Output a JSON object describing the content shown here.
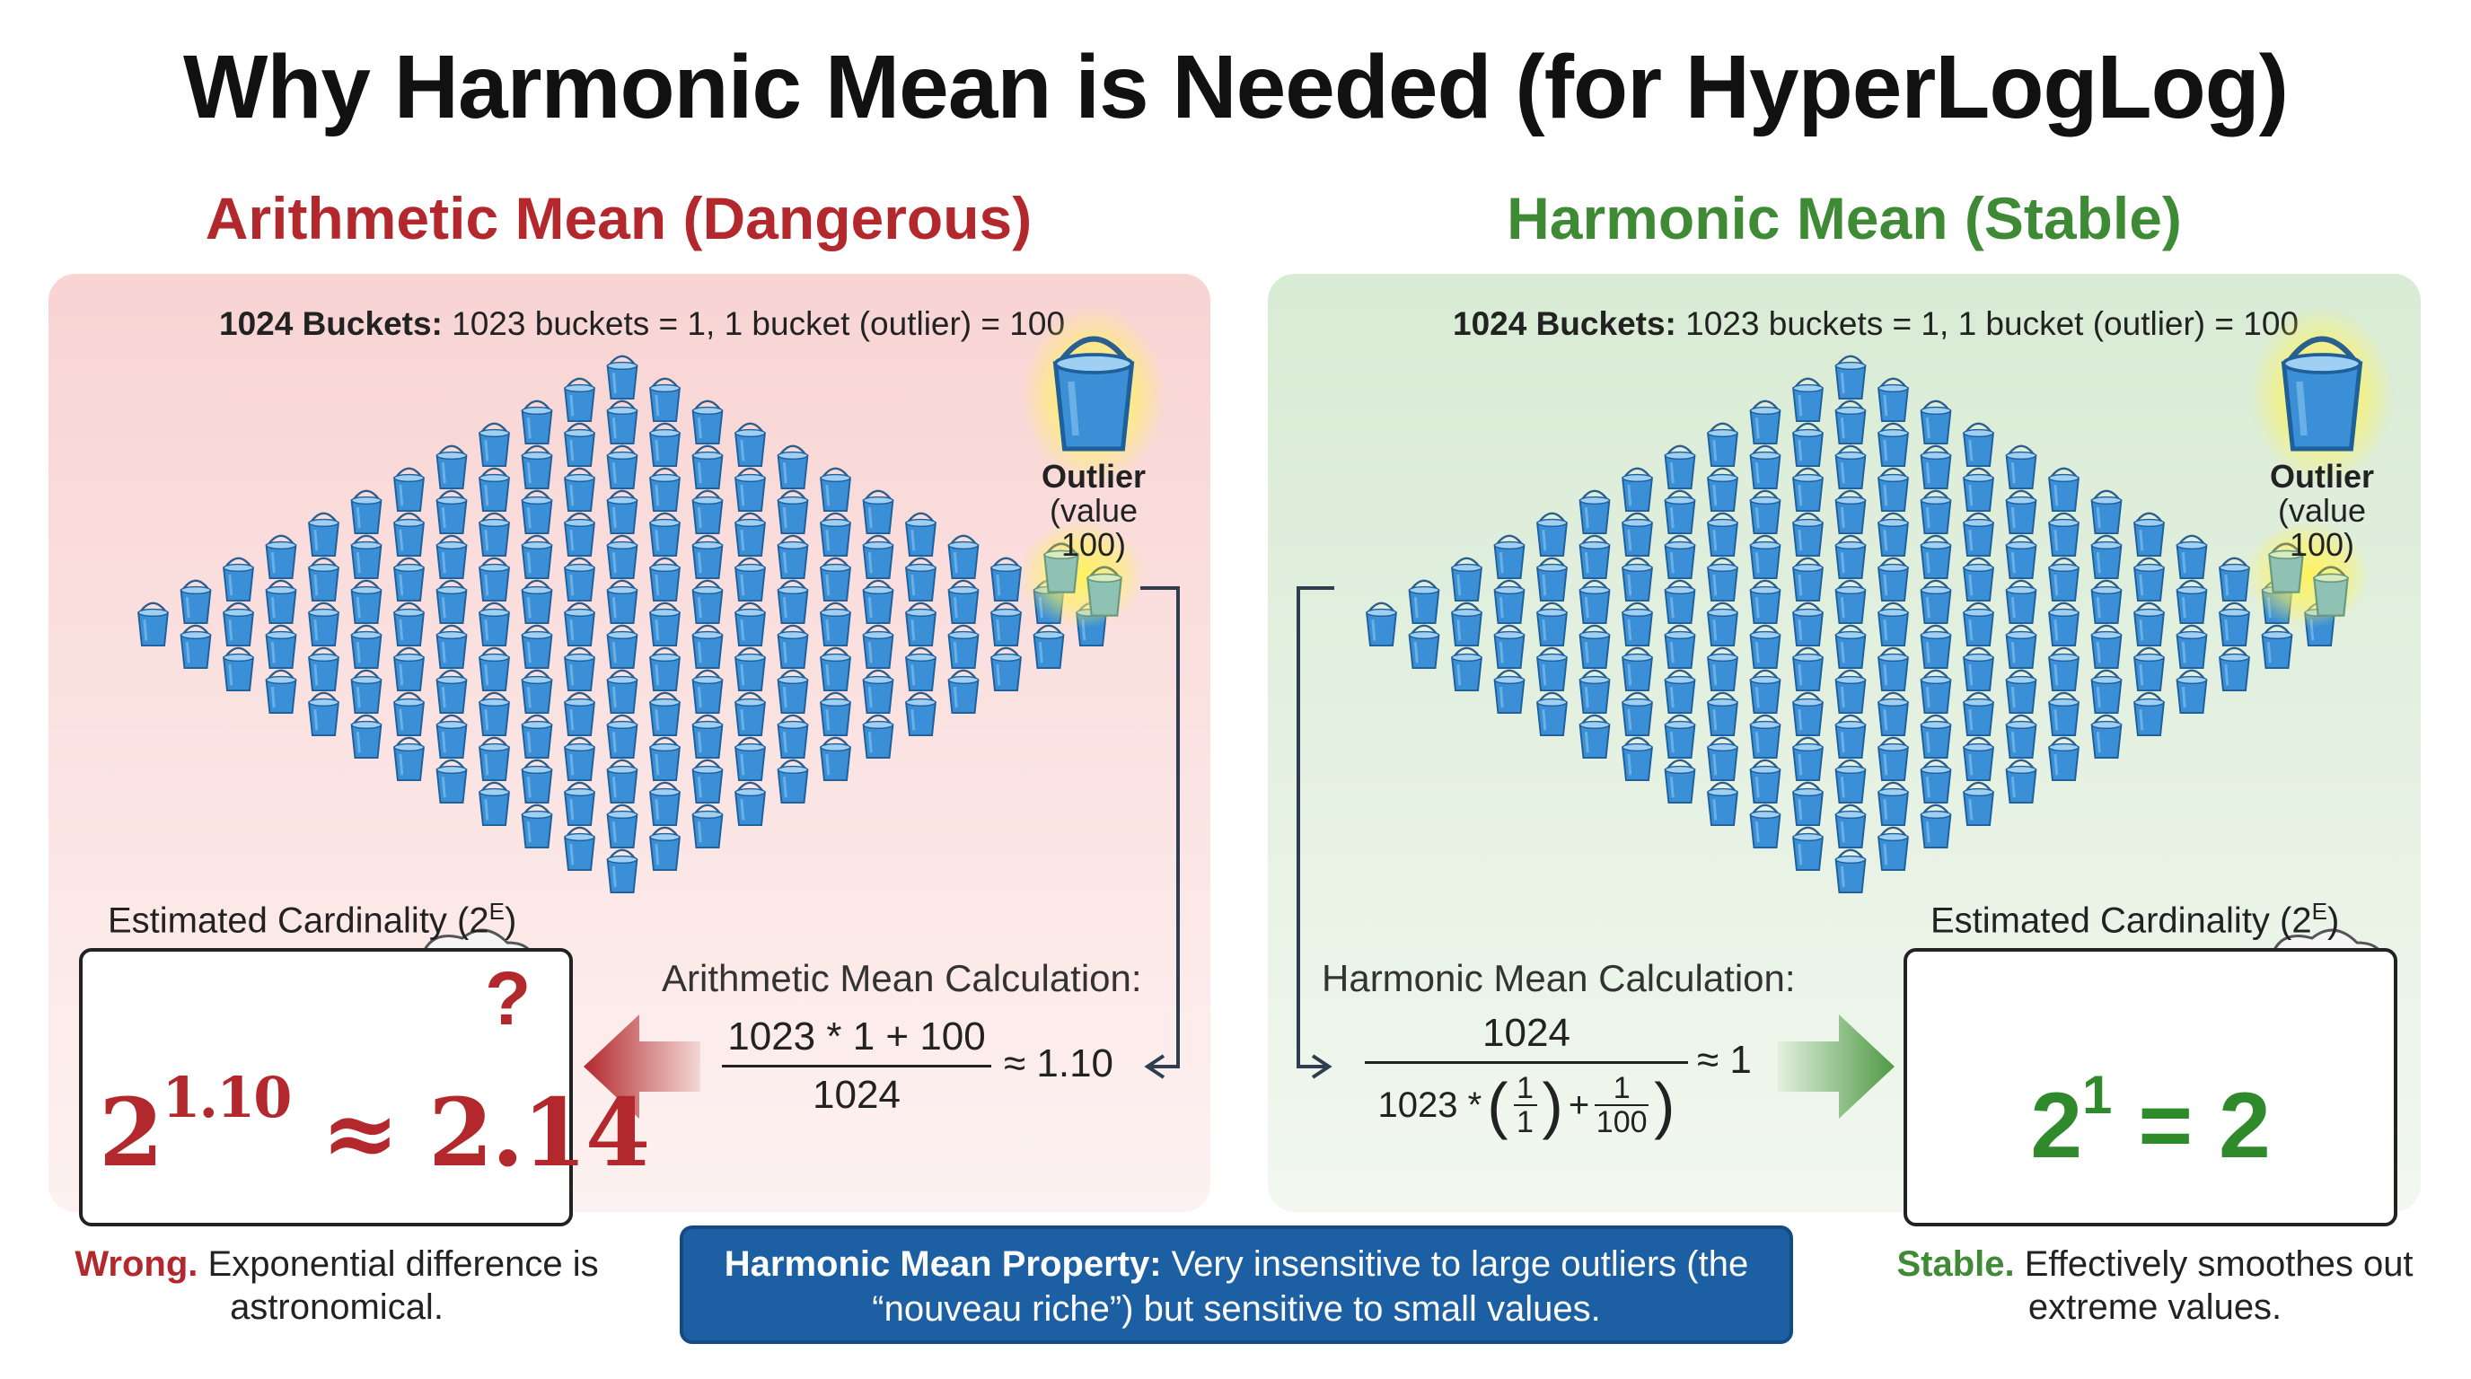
{
  "title": "Why Harmonic Mean is Needed (for HyperLogLog)",
  "left": {
    "heading": "Arithmetic Mean (Dangerous)",
    "buckets_caption_bold": "1024 Buckets:",
    "buckets_caption_rest": "1023 buckets = 1, 1 bucket (outlier) = 100",
    "outlier_label": "Outlier",
    "outlier_value": "(value 100)",
    "card_heading": "Estimated Cardinality (2",
    "card_heading_sup": "E",
    "card_heading_close": ")",
    "result_base": "2",
    "result_exp": "1.10",
    "result_rest": "≈ 2.14",
    "question_mark": "?",
    "calc_title": "Arithmetic Mean Calculation:",
    "numerator": "1023 * 1 + 100",
    "denominator": "1024",
    "approx": "≈ 1.10",
    "verdict_word": "Wrong.",
    "verdict_rest": "Exponential difference is astronomical."
  },
  "right": {
    "heading": "Harmonic Mean (Stable)",
    "buckets_caption_bold": "1024 Buckets:",
    "buckets_caption_rest": "1023 buckets = 1, 1 bucket (outlier) = 100",
    "outlier_label": "Outlier",
    "outlier_value": "(value 100)",
    "card_heading": "Estimated Cardinality (2",
    "card_heading_sup": "E",
    "card_heading_close": ")",
    "result_base": "2",
    "result_exp": "1",
    "result_rest": " = 2",
    "calc_title": "Harmonic Mean Calculation:",
    "numerator": "1024",
    "denominator_prefix": "1023 *",
    "denominator_frac1_num": "1",
    "denominator_frac1_den": "1",
    "denominator_plus": "+",
    "denominator_frac2_num": "1",
    "denominator_frac2_den": "100",
    "approx": "≈ 1",
    "verdict_word": "Stable.",
    "verdict_rest": "Effectively smoothes out extreme values."
  },
  "property": {
    "bold": "Harmonic Mean Property:",
    "text": "Very insensitive to large outliers (the “nouveau riche”) but sensitive to small values."
  },
  "colors": {
    "danger": "#b3282d",
    "stable": "#3f8a35",
    "bucket": "#3a8fd6",
    "outlier_glow": "#fff35a",
    "property_bg": "#1c5fa3"
  },
  "icons": [
    "bucket-icon",
    "outlier-bucket-icon",
    "thought-bubble-icon",
    "left-arrow-icon",
    "right-arrow-icon",
    "connector-arrow-icon"
  ]
}
